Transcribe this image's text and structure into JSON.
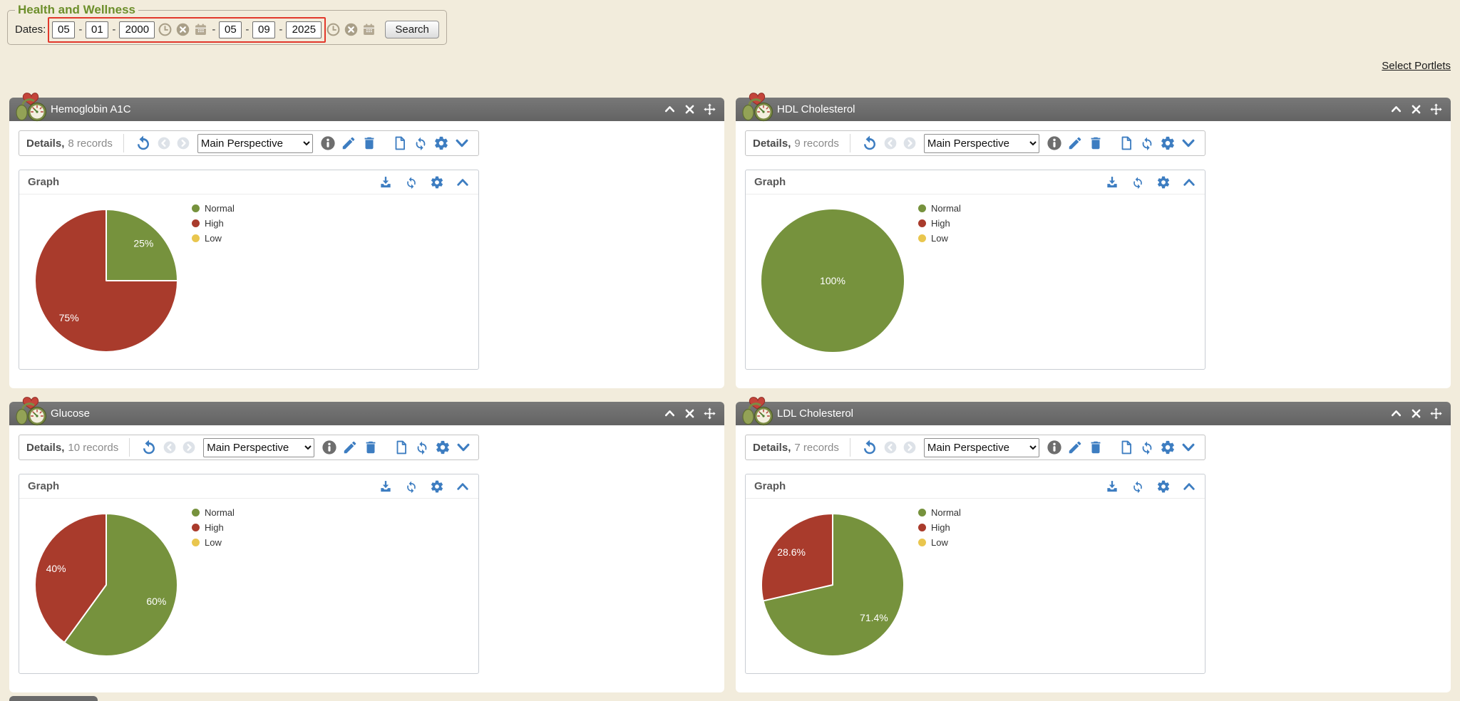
{
  "page": {
    "select_portlets_label": "Select Portlets"
  },
  "filter": {
    "legend": "Health and Wellness",
    "dates_label": "Dates:",
    "from": {
      "month": "05",
      "day": "01",
      "year": "2000"
    },
    "to": {
      "month": "05",
      "day": "09",
      "year": "2025"
    },
    "search_label": "Search",
    "date_icons": [
      "clock-icon",
      "clear-icon",
      "calendar-icon"
    ],
    "annotation": {
      "type": "highlight-box",
      "color": "#e2382b"
    }
  },
  "toolbar": {
    "details_label": "Details,",
    "perspective": "Main Perspective",
    "graph_label": "Graph",
    "icons": [
      "undo-icon",
      "previous-icon",
      "next-icon",
      "info-icon",
      "edit-icon",
      "delete-icon",
      "new-record-icon",
      "refresh-icon",
      "settings-icon",
      "expand-icon"
    ],
    "graph_icons": [
      "download-icon",
      "refresh-icon",
      "settings-icon",
      "collapse-icon"
    ]
  },
  "portlets": [
    {
      "title": "Hemoglobin A1C",
      "records": "8 records"
    },
    {
      "title": "HDL Cholesterol",
      "records": "9 records"
    },
    {
      "title": "Glucose",
      "records": "10 records"
    },
    {
      "title": "LDL Cholesterol",
      "records": "7 records"
    }
  ],
  "chart_data": [
    {
      "type": "pie",
      "title": "Hemoglobin A1C",
      "categories": [
        "Normal",
        "High",
        "Low"
      ],
      "values": [
        25,
        75,
        0
      ],
      "value_labels": [
        "25%",
        "75%",
        ""
      ],
      "colors": [
        "#76923d",
        "#a93b2c",
        "#e9c64e"
      ],
      "legend_position": "right",
      "start_angle": "12 o'clock, clockwise"
    },
    {
      "type": "pie",
      "title": "HDL Cholesterol",
      "categories": [
        "Normal",
        "High",
        "Low"
      ],
      "values": [
        100,
        0,
        0
      ],
      "value_labels": [
        "100%",
        "",
        ""
      ],
      "colors": [
        "#76923d",
        "#a93b2c",
        "#e9c64e"
      ],
      "legend_position": "right",
      "start_angle": "12 o'clock, clockwise"
    },
    {
      "type": "pie",
      "title": "Glucose",
      "categories": [
        "Normal",
        "High",
        "Low"
      ],
      "values": [
        60,
        40,
        0
      ],
      "value_labels": [
        "60%",
        "40%",
        ""
      ],
      "colors": [
        "#76923d",
        "#a93b2c",
        "#e9c64e"
      ],
      "legend_position": "right",
      "start_angle": "12 o'clock, clockwise"
    },
    {
      "type": "pie",
      "title": "LDL Cholesterol",
      "categories": [
        "Normal",
        "High",
        "Low"
      ],
      "values": [
        71.4,
        28.6,
        0
      ],
      "value_labels": [
        "71.4%",
        "28.6%",
        ""
      ],
      "colors": [
        "#76923d",
        "#a93b2c",
        "#e9c64e"
      ],
      "legend_position": "right",
      "start_angle": "12 o'clock, clockwise"
    }
  ],
  "colors": {
    "background": "#f2ecdc",
    "portlet_header": "#6a6a6a",
    "accent_blue": "#3d7dc1",
    "normal_green": "#76923d",
    "high_red": "#a93b2c",
    "low_yellow": "#e9c64e",
    "annotation_red": "#e2382b"
  }
}
